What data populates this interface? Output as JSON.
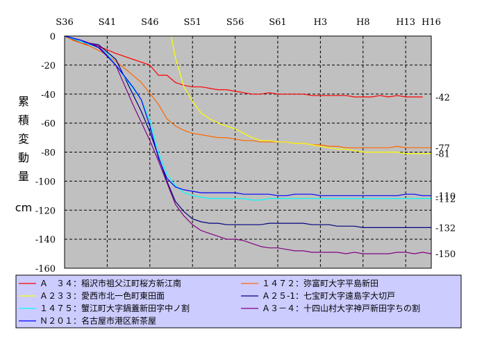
{
  "chart_data": {
    "type": "line",
    "title": "",
    "xlabel": "",
    "ylabel": "累積変動量",
    "y_unit": "cm",
    "x_ticks": [
      "S36",
      "S41",
      "S46",
      "S51",
      "S56",
      "S61",
      "H3",
      "H8",
      "H13",
      "H16"
    ],
    "x_tick_positions": [
      0,
      5,
      10,
      15,
      20,
      25,
      30,
      35,
      40,
      43
    ],
    "xlim": [
      0,
      43
    ],
    "ylim": [
      -160,
      0
    ],
    "y_ticks": [
      0,
      -20,
      -40,
      -60,
      -80,
      -100,
      -120,
      -140,
      -160
    ],
    "y_tick_labels": [
      "0",
      "-20",
      "-40",
      "-60",
      "-80",
      "-100",
      "-120",
      "-140",
      "-160"
    ],
    "grid": {
      "x": true,
      "y": true,
      "style": "dashed"
    },
    "plot_background": "#c0c0c0",
    "legend_background": "#ccccff",
    "legend_position": "bottom",
    "end_labels": [
      "-42",
      "-77",
      "-81",
      "-110",
      "-112",
      "-132",
      "-150"
    ],
    "series": [
      {
        "name": "Ａ　３４：稲沢市祖父江町桜方新江南",
        "color": "#ff0000",
        "x": [
          0,
          2,
          4,
          6,
          8,
          10,
          11,
          12,
          13,
          14,
          15,
          16,
          17,
          18,
          19,
          20,
          21,
          22,
          23,
          24,
          25,
          26,
          27,
          28,
          29,
          30,
          31,
          32,
          33,
          34,
          35,
          36,
          37,
          38,
          39,
          40,
          41,
          42
        ],
        "y": [
          0,
          -5,
          -7,
          -12,
          -16,
          -20,
          -27,
          -27,
          -32,
          -34,
          -35,
          -35,
          -36,
          -37,
          -37,
          -38,
          -39,
          -40,
          -40,
          -39,
          -40,
          -40,
          -40,
          -40,
          -41,
          -41,
          -41,
          -41,
          -41,
          -42,
          -42,
          -42,
          -41,
          -42,
          -41,
          -42,
          -42,
          -42
        ]
      },
      {
        "name": "１４７２：弥富町大字平島新田",
        "color": "#ff6600",
        "x": [
          0,
          1,
          3,
          5,
          7,
          9,
          11,
          12,
          13,
          14,
          15,
          16,
          17,
          18,
          19,
          20,
          21,
          22,
          23,
          24,
          25,
          26,
          27,
          28,
          29,
          30,
          31,
          32,
          33,
          34,
          35,
          36,
          37,
          38,
          39,
          40,
          41,
          42,
          43
        ],
        "y": [
          0,
          -3,
          -7,
          -13,
          -22,
          -32,
          -47,
          -57,
          -62,
          -65,
          -67,
          -68,
          -69,
          -70,
          -70,
          -71,
          -72,
          -72,
          -73,
          -73,
          -73,
          -73,
          -74,
          -74,
          -75,
          -75,
          -76,
          -76,
          -77,
          -77,
          -77,
          -77,
          -77,
          -77,
          -76,
          -77,
          -77,
          -77,
          -77
        ]
      },
      {
        "name": "Ａ２３３：愛西市北一色町東田面",
        "color": "#ffff00",
        "x": [
          12.5,
          13,
          14,
          15,
          16,
          17,
          18,
          19,
          20,
          21,
          22,
          23,
          24,
          25,
          26,
          27,
          28,
          29,
          30,
          31,
          32,
          33,
          34,
          35,
          36,
          37,
          38,
          39,
          40,
          41,
          42,
          43
        ],
        "y": [
          0,
          -15,
          -35,
          -45,
          -53,
          -57,
          -60,
          -62,
          -64,
          -67,
          -70,
          -72,
          -72,
          -73,
          -73,
          -74,
          -74,
          -75,
          -76,
          -77,
          -78,
          -78,
          -79,
          -80,
          -80,
          -80,
          -80,
          -80,
          -81,
          -81,
          -81,
          -81
        ]
      },
      {
        "name": "Ａ２５-1：七宝町大字遠島字大切戸",
        "color": "#000080",
        "x": [
          0,
          2,
          4,
          6,
          7,
          8,
          9,
          10,
          11,
          12,
          13,
          14,
          15,
          16,
          17,
          18,
          19,
          20,
          21,
          22,
          23,
          24,
          25,
          26,
          27,
          28,
          29,
          30,
          31,
          32,
          33,
          34,
          35,
          36,
          37,
          38,
          39,
          40,
          41,
          42,
          43
        ],
        "y": [
          0,
          -4,
          -6,
          -16,
          -28,
          -40,
          -52,
          -66,
          -83,
          -100,
          -114,
          -121,
          -126,
          -128,
          -129,
          -129,
          -130,
          -130,
          -130,
          -130,
          -130,
          -129,
          -129,
          -129,
          -129,
          -129,
          -130,
          -130,
          -130,
          -131,
          -131,
          -131,
          -132,
          -132,
          -132,
          -132,
          -132,
          -132,
          -132,
          -132,
          -132
        ]
      },
      {
        "name": "１４７５：蟹江町大字鍋蓋新田字中ノ割",
        "color": "#00ffff",
        "x": [
          0,
          2,
          4,
          5,
          7,
          9,
          10,
          11,
          12,
          13,
          14,
          15,
          16,
          17,
          18,
          19,
          20,
          21,
          22,
          23,
          24,
          25,
          26,
          27,
          28,
          29,
          30,
          31,
          32,
          33,
          34,
          35,
          36,
          37,
          38,
          39,
          40,
          41,
          42,
          43
        ],
        "y": [
          0,
          -4,
          -8,
          -12,
          -28,
          -44,
          -58,
          -80,
          -95,
          -103,
          -108,
          -110,
          -111,
          -112,
          -112,
          -112,
          -112,
          -112,
          -113,
          -113,
          -112,
          -112,
          -112,
          -112,
          -112,
          -112,
          -112,
          -112,
          -112,
          -112,
          -112,
          -112,
          -112,
          -112,
          -112,
          -112,
          -112,
          -112,
          -112,
          -112
        ]
      },
      {
        "name": "Ａ３－４：十四山村大字神戸新田字ちの割",
        "color": "#800080",
        "x": [
          0,
          2,
          4,
          6,
          8,
          10,
          11,
          12,
          13,
          14,
          15,
          16,
          17,
          18,
          19,
          20,
          21,
          22,
          23,
          24,
          25,
          26,
          27,
          28,
          29,
          30,
          31,
          32,
          33,
          34,
          35,
          36,
          37,
          38,
          39,
          40,
          41,
          42,
          43
        ],
        "y": [
          0,
          -3,
          -7,
          -20,
          -47,
          -72,
          -86,
          -101,
          -116,
          -124,
          -130,
          -134,
          -136,
          -138,
          -140,
          -140,
          -141,
          -143,
          -145,
          -146,
          -146,
          -147,
          -148,
          -148,
          -149,
          -149,
          -149,
          -149,
          -150,
          -149,
          -150,
          -150,
          -150,
          -150,
          -149,
          -149,
          -150,
          -149,
          -150
        ]
      },
      {
        "name": "Ｎ２０１：名古屋市港区新茶屋",
        "color": "#0000ff",
        "x": [
          0,
          2,
          4,
          6,
          8,
          9,
          10,
          11,
          12,
          13,
          14,
          15,
          16,
          17,
          18,
          19,
          20,
          21,
          22,
          23,
          24,
          25,
          26,
          27,
          28,
          29,
          30,
          31,
          32,
          33,
          34,
          35,
          36,
          37,
          38,
          39,
          40,
          41,
          42,
          43
        ],
        "y": [
          0,
          -3,
          -8,
          -20,
          -35,
          -44,
          -62,
          -84,
          -98,
          -104,
          -106,
          -107,
          -108,
          -108,
          -108,
          -108,
          -108,
          -109,
          -109,
          -109,
          -109,
          -110,
          -110,
          -109,
          -109,
          -109,
          -110,
          -110,
          -110,
          -110,
          -110,
          -110,
          -110,
          -110,
          -110,
          -110,
          -109,
          -109,
          -110,
          -110
        ]
      }
    ]
  }
}
